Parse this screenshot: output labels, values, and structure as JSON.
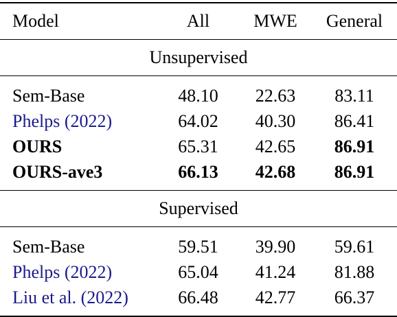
{
  "header": {
    "model": "Model",
    "all": "All",
    "mwe": "MWE",
    "general": "General"
  },
  "sections": [
    {
      "title": "Unsupervised",
      "rows": [
        {
          "model": "Sem-Base",
          "year": "",
          "all": "48.10",
          "mwe": "22.63",
          "general": "83.11"
        },
        {
          "model": "Phelps",
          "year": "(2022)",
          "all": "64.02",
          "mwe": "40.30",
          "general": "86.41"
        },
        {
          "model": "OURS",
          "year": "",
          "all": "65.31",
          "mwe": "42.65",
          "general": "86.91"
        },
        {
          "model": "OURS-ave3",
          "year": "",
          "all": "66.13",
          "mwe": "42.68",
          "general": "86.91"
        }
      ]
    },
    {
      "title": "Supervised",
      "rows": [
        {
          "model": "Sem-Base",
          "year": "",
          "all": "59.51",
          "mwe": "39.90",
          "general": "59.61"
        },
        {
          "model": "Phelps",
          "year": "(2022)",
          "all": "65.04",
          "mwe": "41.24",
          "general": "81.88"
        },
        {
          "model": "Liu et al.",
          "year": "(2022)",
          "all": "66.48",
          "mwe": "42.77",
          "general": "66.37"
        }
      ]
    }
  ],
  "colors": {
    "citation": "#1a1a8c",
    "text": "#000000"
  }
}
